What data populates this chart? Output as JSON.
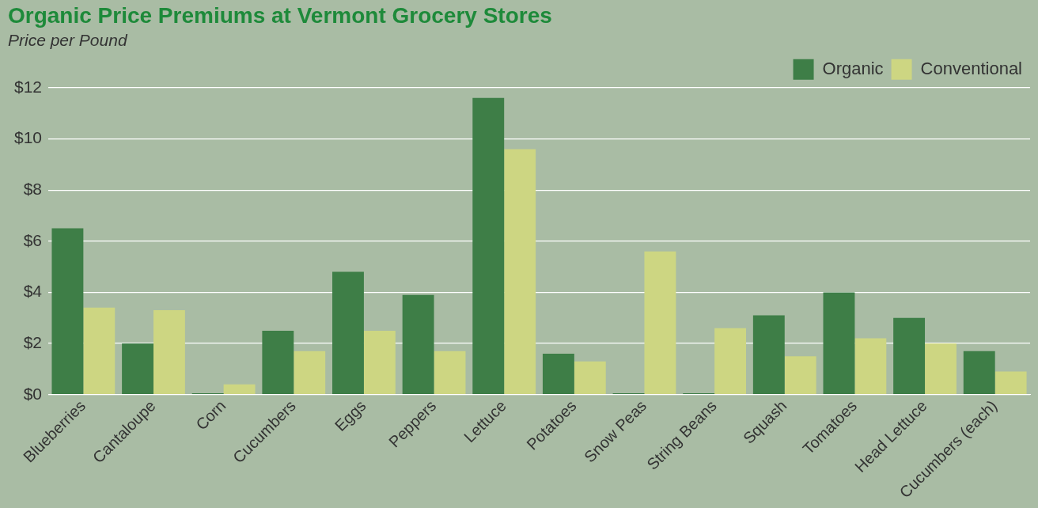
{
  "chart_data": {
    "type": "bar",
    "title": "Organic Price Premiums at Vermont Grocery Stores",
    "subtitle": "Price per Pound",
    "categories": [
      "Blueberries",
      "Cantaloupe",
      "Corn",
      "Cucumbers",
      "Eggs",
      "Peppers",
      "Lettuce",
      "Potatoes",
      "Snow Peas",
      "String Beans",
      "Squash",
      "Tomatoes",
      "Head Lettuce",
      "Cucumbers (each)"
    ],
    "series": [
      {
        "name": "Organic",
        "color": "#3e7e47",
        "values": [
          6.5,
          2.0,
          0.05,
          2.5,
          4.8,
          3.9,
          11.6,
          1.6,
          0.05,
          0.05,
          3.1,
          4.0,
          3.0,
          1.7
        ]
      },
      {
        "name": "Conventional",
        "color": "#cdd682",
        "values": [
          3.4,
          3.3,
          0.4,
          1.7,
          2.5,
          1.7,
          9.6,
          1.3,
          5.6,
          2.6,
          1.5,
          2.2,
          2.0,
          0.9
        ]
      }
    ],
    "ylim": [
      0,
      12
    ],
    "yticks": [
      {
        "value": 0,
        "label": "$0"
      },
      {
        "value": 2,
        "label": "$2"
      },
      {
        "value": 4,
        "label": "$4"
      },
      {
        "value": 6,
        "label": "$6"
      },
      {
        "value": 8,
        "label": "$8"
      },
      {
        "value": 10,
        "label": "$10"
      },
      {
        "value": 12,
        "label": "$12"
      }
    ],
    "grid": "y",
    "legend": "top right"
  }
}
